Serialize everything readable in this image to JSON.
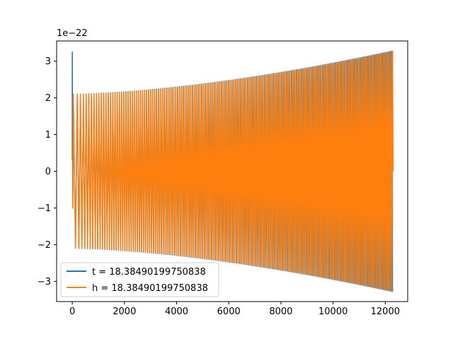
{
  "chart_data": {
    "type": "line",
    "title": "",
    "xlabel": "",
    "ylabel": "",
    "y_offset_label": "1e−22",
    "xlim": [
      -600,
      12860
    ],
    "ylim": [
      -3.55,
      3.55
    ],
    "x_ticks": [
      0,
      2000,
      4000,
      6000,
      8000,
      10000,
      12000
    ],
    "x_tick_labels": [
      "0",
      "2000",
      "4000",
      "6000",
      "8000",
      "10000",
      "12000"
    ],
    "y_ticks": [
      3,
      2,
      1,
      0,
      -1,
      -2,
      -3
    ],
    "y_tick_labels": [
      "3",
      "2",
      "1",
      "0",
      "−1",
      "−2",
      "−3"
    ],
    "grid": false,
    "legend_position": "lower-left",
    "series": [
      {
        "name": "t = 18.38490199750838",
        "color": "#1f77b4",
        "kind": "chirp",
        "x_start": 0,
        "x_end": 12280,
        "initial_spike": 3.25,
        "envelope_start": 2.1,
        "envelope_end": 3.28,
        "end_value": -3.28,
        "cycles": 175
      },
      {
        "name": "h = 18.38490199750838",
        "color": "#ff7f0e",
        "kind": "chirp",
        "x_start": 0,
        "x_end": 12300,
        "initial_value": -1.0,
        "envelope_start": 2.1,
        "envelope_end": 3.28,
        "end_value": 0.0,
        "cycles": 175
      }
    ]
  }
}
